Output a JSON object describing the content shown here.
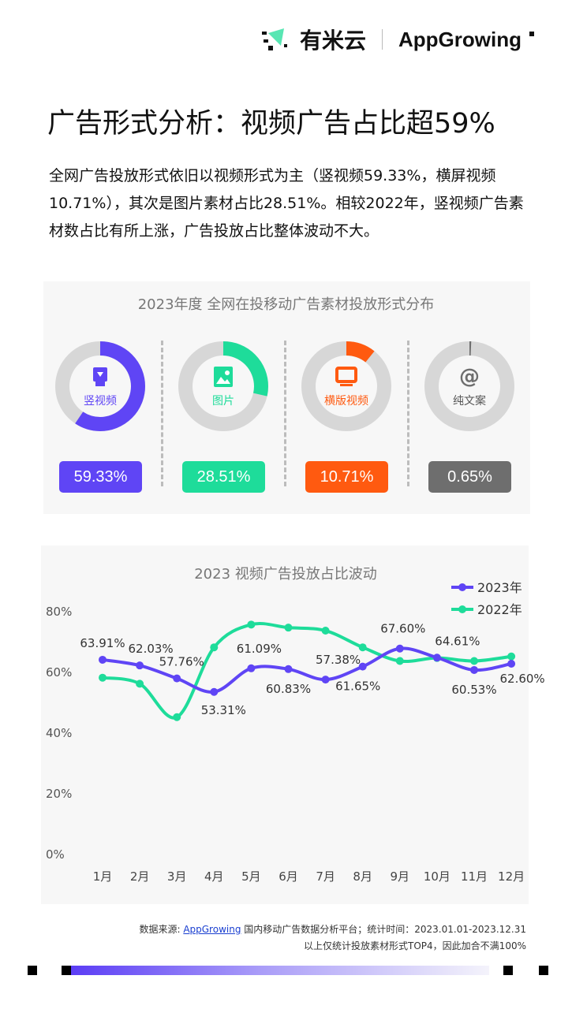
{
  "header": {
    "logo_cn": "有米云",
    "logo_en": "AppGrowing"
  },
  "title": "广告形式分析：视频广告占比超59%",
  "description": "全网广告投放形式依旧以视频形式为主（竖视频59.33%，横屏视频10.71%），其次是图片素材占比28.51%。相较2022年，竖视频广告素材数占比有所上涨，广告投放占比整体波动不大。",
  "chart_data": [
    {
      "type": "pie",
      "title": "2023年度 全网在投移动广告素材投放形式分布",
      "slices": [
        {
          "label": "竖视频",
          "value": 59.33,
          "display": "59.33%",
          "color": "#5f45f5",
          "icon": "vertical-video-icon"
        },
        {
          "label": "图片",
          "value": 28.51,
          "display": "28.51%",
          "color": "#1edc9a",
          "icon": "image-icon"
        },
        {
          "label": "横版视频",
          "value": 10.71,
          "display": "10.71%",
          "color": "#ff5a10",
          "icon": "monitor-icon"
        },
        {
          "label": "纯文案",
          "value": 0.65,
          "display": "0.65%",
          "color": "#6e6e6e",
          "icon": "at-icon"
        }
      ]
    },
    {
      "type": "line",
      "title": "2023 视频广告投放占比波动",
      "categories": [
        "1月",
        "2月",
        "3月",
        "4月",
        "5月",
        "6月",
        "7月",
        "8月",
        "9月",
        "10月",
        "11月",
        "12月"
      ],
      "yticks": [
        "0%",
        "20%",
        "40%",
        "60%",
        "80%"
      ],
      "ylim": [
        0,
        80
      ],
      "grid": false,
      "legend": "top-right",
      "series": [
        {
          "name": "2023年",
          "color": "#5f45f5",
          "values": [
            63.91,
            62.03,
            57.76,
            53.31,
            61.09,
            60.83,
            57.38,
            61.65,
            67.6,
            64.61,
            60.53,
            62.6
          ],
          "labels": [
            "63.91%",
            "62.03%",
            "57.76%",
            "53.31%",
            "61.09%",
            "60.83%",
            "57.38%",
            "61.65%",
            "67.60%",
            "64.61%",
            "60.53%",
            "62.60%"
          ]
        },
        {
          "name": "2022年",
          "color": "#1edc9a",
          "values": [
            58,
            56,
            45,
            68,
            75.5,
            74.5,
            73.5,
            68,
            63.5,
            64.5,
            63.5,
            65
          ]
        }
      ]
    }
  ],
  "footer": {
    "source_prefix": "数据来源: ",
    "source_link": "AppGrowing",
    "source_suffix": " 国内移动广告数据分析平台；统计时间：2023.01.01-2023.12.31",
    "note": "以上仅统计投放素材形式TOP4，因此加合不满100%"
  }
}
